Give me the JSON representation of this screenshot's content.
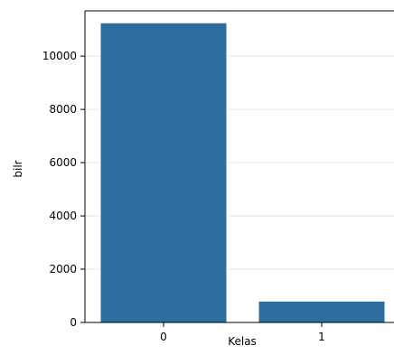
{
  "chart_data": {
    "type": "bar",
    "title": "",
    "xlabel": "Kelas",
    "ylabel": "bilr",
    "categories": [
      "0",
      "1"
    ],
    "values": [
      11250,
      800
    ],
    "ylim": [
      0,
      11700
    ],
    "yticks": [
      0,
      2000,
      4000,
      6000,
      8000,
      10000
    ],
    "ytick_labels": [
      "0",
      "2000",
      "4000",
      "6000",
      "8000",
      "10000"
    ],
    "grid": true,
    "legend": "none",
    "colors": {
      "bar": "#2e6e9e",
      "grid": "#e6e6e6",
      "axis": "#000000"
    }
  }
}
